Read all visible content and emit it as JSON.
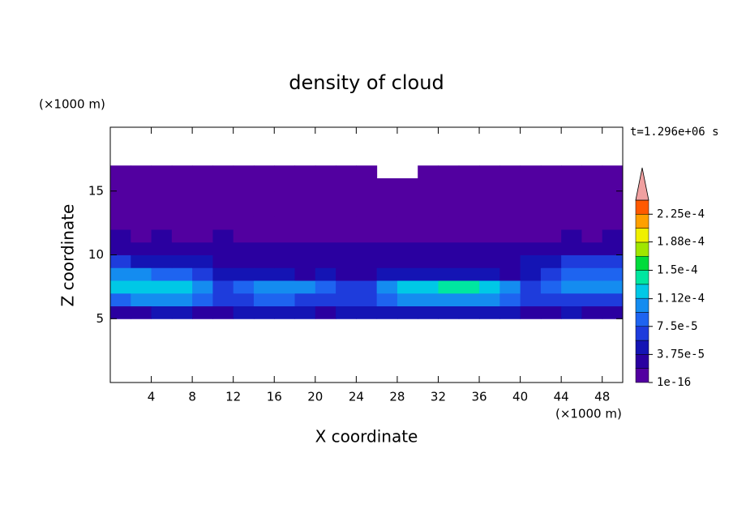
{
  "chart_data": {
    "type": "contourf",
    "title": "density of cloud",
    "x_label": "X coordinate",
    "y_label": "Z coordinate",
    "x_unit": "(×1000 m)",
    "y_unit": "(×1000 m)",
    "annotation": "t=1.296e+06 s",
    "xlim": [
      0,
      50
    ],
    "xticks": [
      4,
      8,
      12,
      16,
      20,
      24,
      28,
      32,
      36,
      40,
      44,
      48
    ],
    "ylim": [
      0,
      20
    ],
    "yticks": [
      5,
      10,
      15
    ],
    "x": [
      1,
      3,
      5,
      7,
      9,
      11,
      13,
      15,
      17,
      19,
      21,
      23,
      25,
      27,
      29,
      31,
      33,
      35,
      37,
      39,
      41,
      43,
      45,
      47,
      49
    ],
    "y": [
      5.5,
      6.5,
      7.5,
      8.5,
      9.5,
      10.5,
      11.5,
      12.5,
      13.5,
      14.5,
      15.5,
      16.5
    ],
    "z": [
      [
        2.8e-05,
        2.8e-05,
        4.7e-05,
        4.7e-05,
        2.8e-05,
        2.8e-05,
        4.7e-05,
        4.7e-05,
        4.7e-05,
        4.7e-05,
        2.8e-05,
        4.7e-05,
        4.7e-05,
        4.7e-05,
        4.7e-05,
        4.7e-05,
        4.7e-05,
        4.7e-05,
        4.7e-05,
        4.7e-05,
        2.8e-05,
        2.8e-05,
        4.7e-05,
        2.8e-05,
        2.8e-05
      ],
      [
        8.4e-05,
        0.000103,
        0.000103,
        0.000103,
        8.4e-05,
        6.5e-05,
        6.5e-05,
        8.4e-05,
        8.4e-05,
        6.5e-05,
        6.5e-05,
        6.5e-05,
        6.5e-05,
        8.4e-05,
        0.000103,
        0.000103,
        0.000103,
        0.000103,
        0.000103,
        8.4e-05,
        6.5e-05,
        6.5e-05,
        6.5e-05,
        6.5e-05,
        6.5e-05
      ],
      [
        0.000122,
        0.000122,
        0.000122,
        0.000122,
        0.000103,
        6.5e-05,
        8.4e-05,
        0.000103,
        0.000103,
        0.000103,
        8.4e-05,
        6.5e-05,
        6.5e-05,
        0.000103,
        0.000122,
        0.000122,
        0.00014,
        0.00014,
        0.000122,
        0.000103,
        6.5e-05,
        8.4e-05,
        0.000103,
        0.000103,
        0.000103
      ],
      [
        0.000103,
        0.000103,
        8.4e-05,
        8.4e-05,
        6.5e-05,
        4.7e-05,
        4.7e-05,
        4.7e-05,
        4.7e-05,
        2.8e-05,
        4.7e-05,
        2.8e-05,
        2.8e-05,
        4.7e-05,
        4.7e-05,
        4.7e-05,
        4.7e-05,
        4.7e-05,
        4.7e-05,
        2.8e-05,
        4.7e-05,
        6.5e-05,
        8.4e-05,
        8.4e-05,
        8.4e-05
      ],
      [
        6.5e-05,
        4.7e-05,
        4.7e-05,
        4.7e-05,
        4.7e-05,
        2.8e-05,
        2.8e-05,
        2.8e-05,
        2.8e-05,
        2.8e-05,
        2.8e-05,
        2.8e-05,
        2.8e-05,
        2.8e-05,
        2.8e-05,
        2.8e-05,
        2.8e-05,
        2.8e-05,
        2.8e-05,
        2.8e-05,
        4.7e-05,
        4.7e-05,
        6.5e-05,
        6.5e-05,
        6.5e-05
      ],
      [
        2.8e-05,
        2.8e-05,
        2.8e-05,
        2.8e-05,
        2.8e-05,
        2.8e-05,
        2.8e-05,
        2.8e-05,
        2.8e-05,
        2.8e-05,
        2.8e-05,
        2.8e-05,
        2.8e-05,
        2.8e-05,
        2.8e-05,
        2.8e-05,
        2.8e-05,
        2.8e-05,
        2.8e-05,
        2.8e-05,
        2.8e-05,
        2.8e-05,
        2.8e-05,
        2.8e-05,
        2.8e-05
      ],
      [
        2.8e-05,
        1e-05,
        2.8e-05,
        1e-05,
        1e-05,
        2.8e-05,
        1e-05,
        1e-05,
        1e-05,
        1e-05,
        1e-05,
        1e-05,
        1e-05,
        1e-05,
        1e-05,
        1e-05,
        1e-05,
        1e-05,
        1e-05,
        1e-05,
        1e-05,
        1e-05,
        2.8e-05,
        1e-05,
        2.8e-05
      ],
      [
        1e-05,
        1e-05,
        1e-05,
        1e-05,
        1e-05,
        1e-05,
        1e-05,
        1e-05,
        1e-05,
        1e-05,
        1e-05,
        1e-05,
        1e-05,
        1e-05,
        1e-05,
        1e-05,
        1e-05,
        1e-05,
        1e-05,
        1e-05,
        1e-05,
        1e-05,
        1e-05,
        1e-05,
        1e-05
      ],
      [
        1e-05,
        1e-05,
        1e-05,
        1e-05,
        1e-05,
        1e-05,
        1e-05,
        1e-05,
        1e-05,
        1e-05,
        1e-05,
        1e-05,
        1e-05,
        1e-05,
        1e-05,
        1e-05,
        1e-05,
        1e-05,
        1e-05,
        1e-05,
        1e-05,
        1e-05,
        1e-05,
        1e-05,
        1e-05
      ],
      [
        1e-05,
        1e-05,
        1e-05,
        1e-05,
        1e-05,
        1e-05,
        1e-05,
        1e-05,
        1e-05,
        1e-05,
        1e-05,
        1e-05,
        1e-05,
        1e-05,
        1e-05,
        1e-05,
        1e-05,
        1e-05,
        1e-05,
        1e-05,
        1e-05,
        1e-05,
        1e-05,
        1e-05,
        1e-05
      ],
      [
        1e-05,
        1e-05,
        1e-05,
        1e-05,
        1e-05,
        1e-05,
        1e-05,
        1e-05,
        1e-05,
        1e-05,
        1e-05,
        1e-05,
        1e-05,
        1e-05,
        1e-05,
        1e-05,
        1e-05,
        1e-05,
        1e-05,
        1e-05,
        1e-05,
        1e-05,
        1e-05,
        1e-05,
        1e-05
      ],
      [
        1e-05,
        1e-05,
        1e-05,
        1e-05,
        1e-05,
        1e-05,
        1e-05,
        1e-05,
        1e-05,
        1e-05,
        1e-05,
        1e-05,
        1e-05,
        null,
        null,
        1e-05,
        1e-05,
        1e-05,
        1e-05,
        1e-05,
        1e-05,
        1e-05,
        1e-05,
        1e-05,
        1e-05
      ]
    ],
    "clevels": [
      1e-16,
      1.875e-05,
      3.75e-05,
      5.625e-05,
      7.5e-05,
      9.375e-05,
      0.0001125,
      0.00013125,
      0.00015,
      0.00016875,
      0.0001875,
      0.00020625,
      0.000225,
      0.00024375
    ],
    "colors": [
      "#5200a0",
      "#2a00a0",
      "#1414b4",
      "#1e3cdc",
      "#1e64f0",
      "#148cf0",
      "#00c8e6",
      "#00e6a0",
      "#00dc3c",
      "#a0e600",
      "#f0f000",
      "#ffa000",
      "#ff5a00"
    ],
    "over_color": "#f0a0a0",
    "cticks": [
      1e-16,
      {
        "value": 3.75e-05,
        "label": "3.75e-5"
      },
      {
        "value": 7.5e-05,
        "label": "7.5e-5"
      },
      {
        "value": 0.000112,
        "label": "1.12e-4"
      },
      {
        "value": 0.00015,
        "label": "1.5e-4"
      },
      {
        "value": 0.000188,
        "label": "1.88e-4"
      },
      {
        "value": 0.000225,
        "label": "2.25e-4"
      }
    ]
  }
}
